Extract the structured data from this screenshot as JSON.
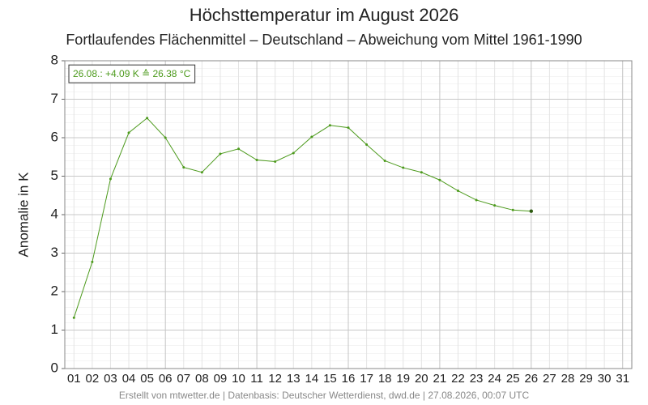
{
  "chart_data": {
    "type": "line",
    "title": "Höchsttemperatur im August 2026",
    "subtitle": "Fortlaufendes Flächenmittel – Deutschland – Abweichung vom Mittel 1961-1990",
    "y_label": "Anomalie in K",
    "annotation": "26.08.: +4.09 K ≙ 26.38 °C",
    "footer": "Erstellt von mtwetter.de | Datenbasis: Deutscher Wetterdienst, dwd.de | 27.08.2026, 00:07 UTC",
    "categories": [
      "01",
      "02",
      "03",
      "04",
      "05",
      "06",
      "07",
      "08",
      "09",
      "10",
      "11",
      "12",
      "13",
      "14",
      "15",
      "16",
      "17",
      "18",
      "19",
      "20",
      "21",
      "22",
      "23",
      "24",
      "25",
      "26",
      "27",
      "28",
      "29",
      "30",
      "31"
    ],
    "series": [
      {
        "name": "Anomalie",
        "color": "#4c9a1c",
        "values": [
          1.32,
          2.77,
          4.93,
          6.13,
          6.51,
          6.0,
          5.23,
          5.1,
          5.58,
          5.71,
          5.42,
          5.38,
          5.6,
          6.02,
          6.32,
          6.26,
          5.82,
          5.4,
          5.22,
          5.1,
          4.9,
          4.62,
          4.38,
          4.24,
          4.12,
          4.09,
          null,
          null,
          null,
          null,
          null
        ]
      }
    ],
    "ylim": [
      0,
      8
    ],
    "yticks": [
      0,
      1,
      2,
      3,
      4,
      5,
      6,
      7,
      8
    ],
    "grid": true
  }
}
